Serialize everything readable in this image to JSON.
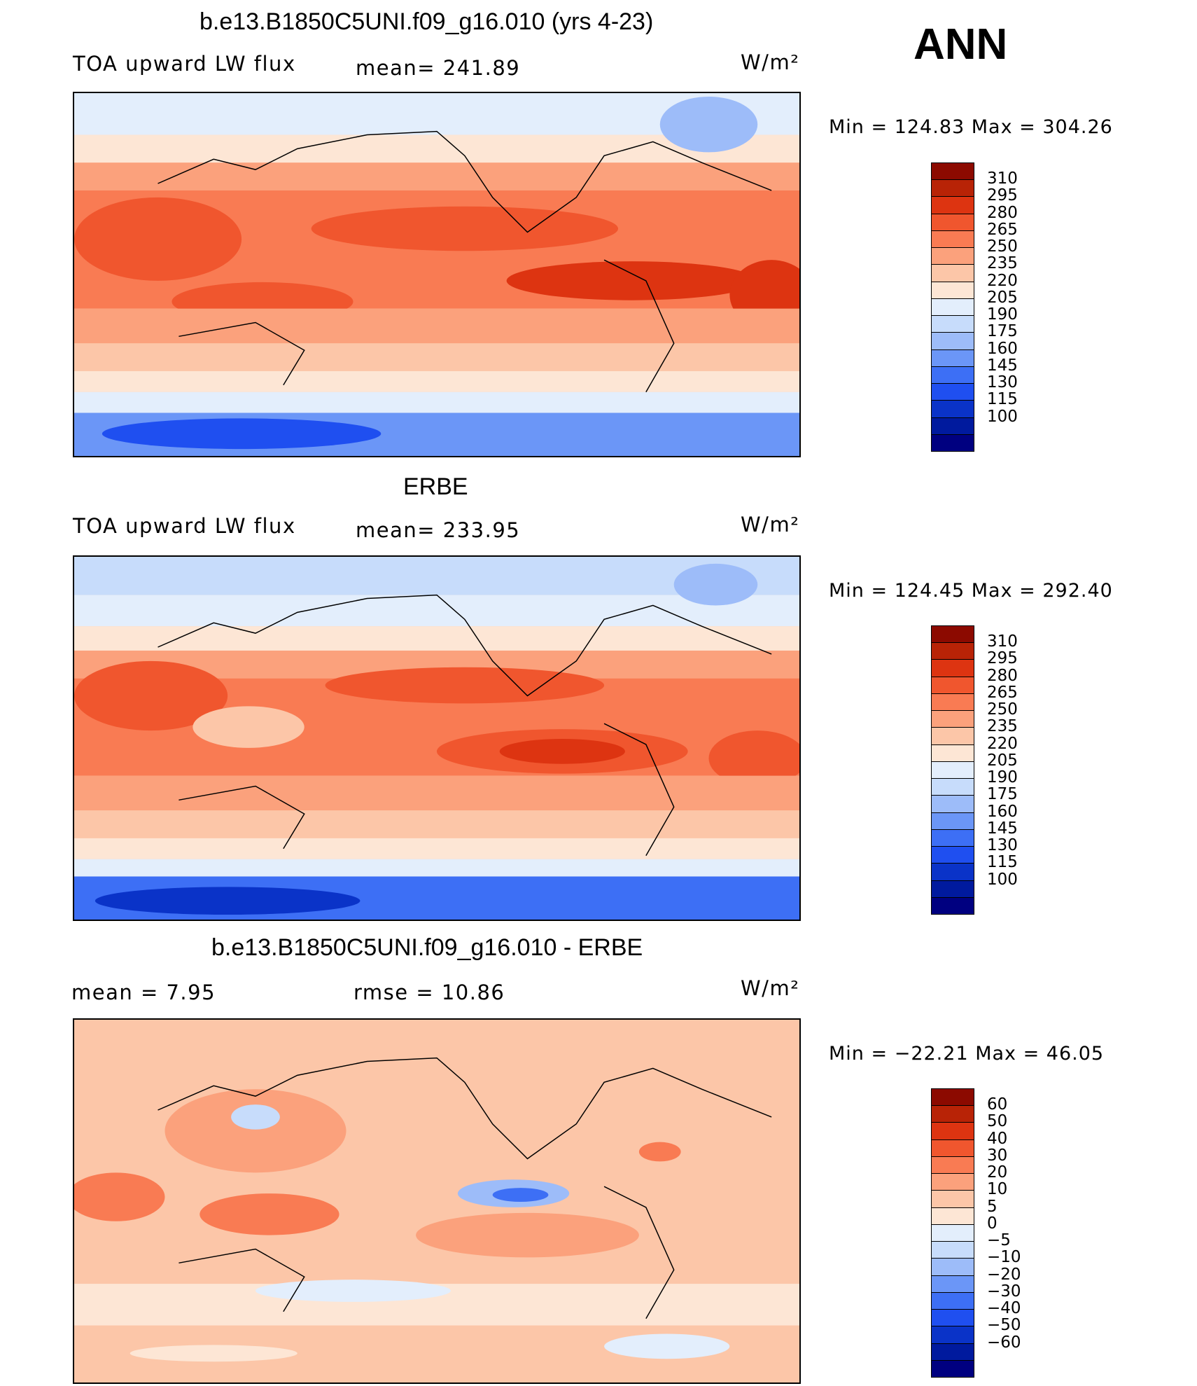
{
  "season": "ANN",
  "colors": {
    "abs": [
      "#000080",
      "#001a9e",
      "#0a33c8",
      "#1f4ff0",
      "#3d6ff5",
      "#6b96f7",
      "#9dbcf9",
      "#c7dcfb",
      "#e3eefc",
      "#fde6d5",
      "#fcc6a8",
      "#fba17c",
      "#f97b53",
      "#f0562e",
      "#dd3411",
      "#b82306",
      "#8c0a00"
    ],
    "diff": [
      "#000080",
      "#001a9e",
      "#0a33c8",
      "#1f4ff0",
      "#3d6ff5",
      "#6b96f7",
      "#9dbcf9",
      "#c7dcfb",
      "#e3eefc",
      "#fde6d5",
      "#fcc6a8",
      "#fba17c",
      "#f97b53",
      "#f0562e",
      "#dd3411",
      "#b82306",
      "#8c0a00"
    ]
  },
  "panels": [
    {
      "title": "b.e13.B1850C5UNI.f09_g16.010 (yrs 4-23)",
      "left_text": "TOA upward LW flux",
      "mid_text": "mean=  241.89",
      "units": "W/m²",
      "minmax": "Min  =  124.83  Max  =  304.26",
      "levels": [
        "310",
        "295",
        "280",
        "265",
        "250",
        "235",
        "220",
        "205",
        "190",
        "175",
        "160",
        "145",
        "130",
        "115",
        "100"
      ]
    },
    {
      "title": "ERBE",
      "left_text": "TOA upward LW flux",
      "mid_text": "mean=  233.95",
      "units": "W/m²",
      "minmax": "Min  =  124.45  Max  =  292.40",
      "levels": [
        "310",
        "295",
        "280",
        "265",
        "250",
        "235",
        "220",
        "205",
        "190",
        "175",
        "160",
        "145",
        "130",
        "115",
        "100"
      ]
    },
    {
      "title": "b.e13.B1850C5UNI.f09_g16.010 - ERBE",
      "left_text": "mean  =      7.95",
      "mid_text": "rmse  =    10.86",
      "units": "W/m²",
      "minmax": "Min  =  −22.21  Max  =    46.05",
      "levels": [
        "60",
        "50",
        "40",
        "30",
        "20",
        "10",
        "5",
        "0",
        "−5",
        "−10",
        "−20",
        "−30",
        "−40",
        "−50",
        "−60"
      ]
    }
  ]
}
